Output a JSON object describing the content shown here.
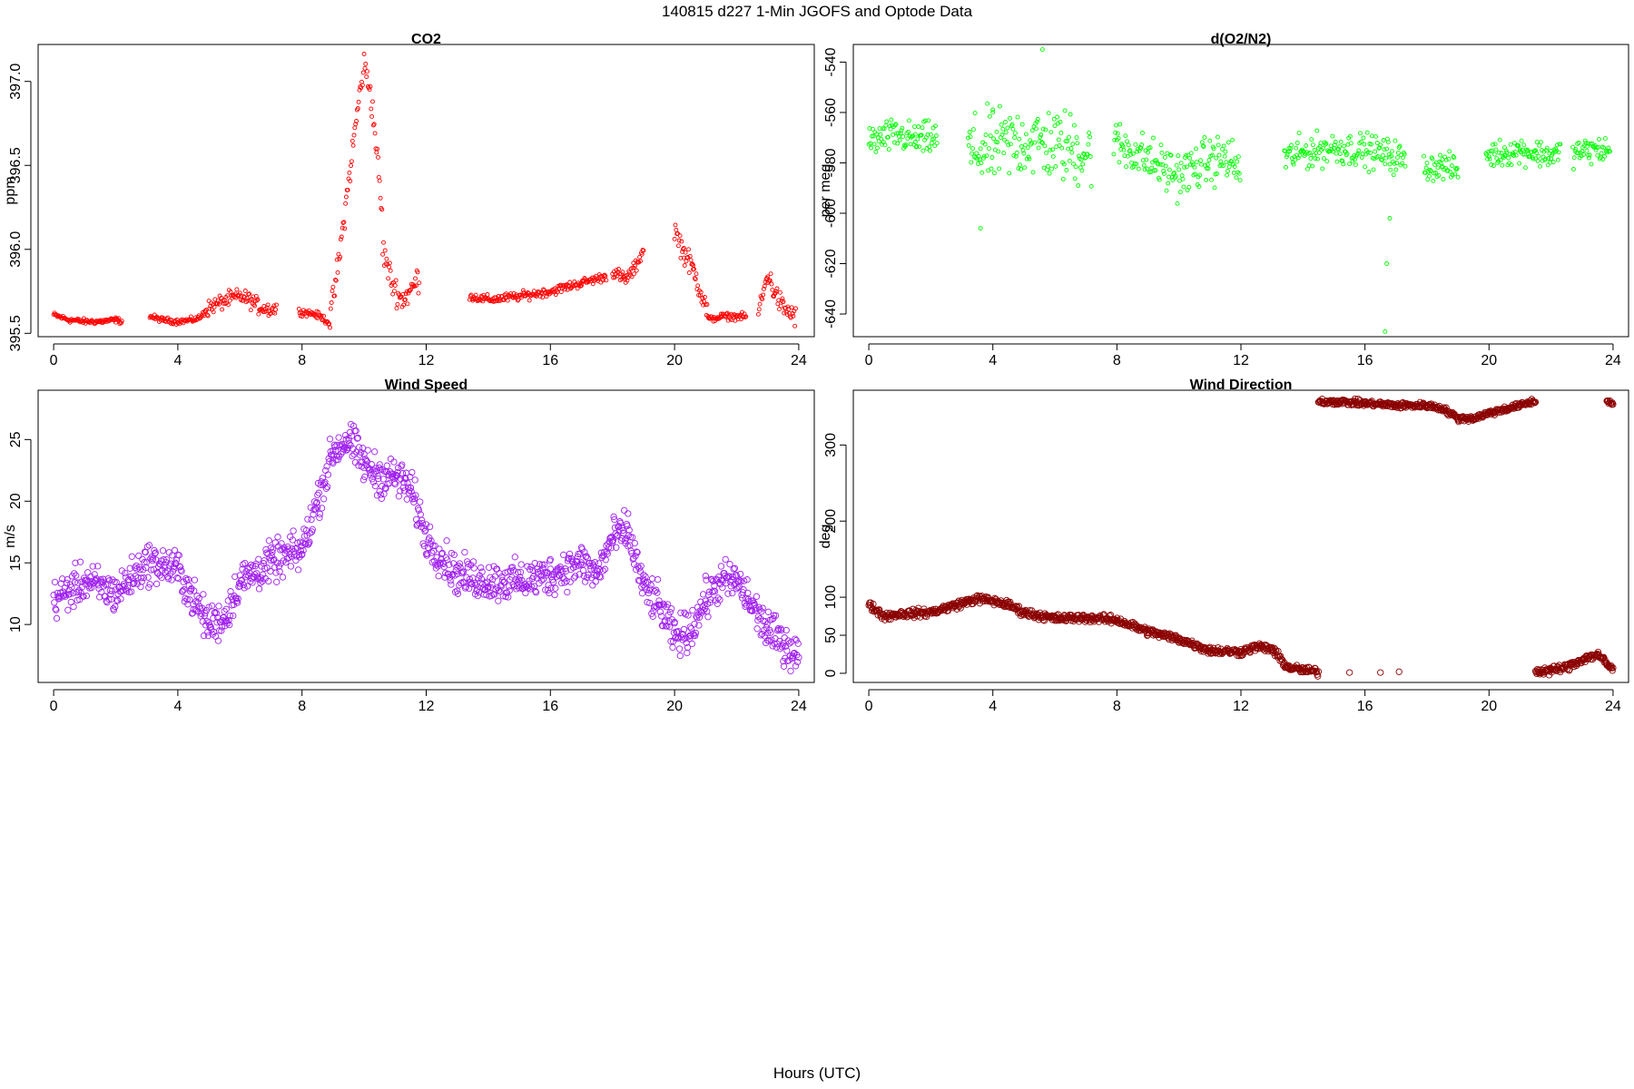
{
  "figure": {
    "title": "140815   d227   1-Min  JGOFS and Optode Data",
    "xlabel": "Hours (UTC)"
  },
  "chart_data": [
    {
      "type": "scatter",
      "title": "CO2",
      "ylabel": "ppm",
      "color": "#ff0000",
      "marker": "small-open-circle",
      "xlim": [
        -0.5,
        24.5
      ],
      "ylim": [
        395.48,
        397.22
      ],
      "xticks": [
        0,
        4,
        8,
        12,
        16,
        20,
        24
      ],
      "yticks": [
        395.5,
        396.0,
        396.5,
        397.0
      ],
      "ytick_labels": [
        "395.5",
        "396.0",
        "396.5",
        "397.0"
      ],
      "segments": [
        {
          "x": [
            0,
            0.5,
            1,
            1.5,
            2,
            2.2
          ],
          "y": [
            395.61,
            395.58,
            395.57,
            395.57,
            395.58,
            395.57
          ],
          "noise": 0.012
        },
        {
          "x": [
            3.1,
            3.5,
            4,
            4.5,
            4.8
          ],
          "y": [
            395.6,
            395.58,
            395.57,
            395.58,
            395.6
          ],
          "noise": 0.012
        },
        {
          "x": [
            4.8,
            5.2,
            5.6,
            6,
            6.3,
            6.6,
            7.0,
            7.2
          ],
          "y": [
            395.63,
            395.67,
            395.7,
            395.72,
            395.7,
            395.66,
            395.64,
            395.65
          ],
          "noise": 0.035
        },
        {
          "x": [
            7.9,
            8.3,
            8.6,
            8.9
          ],
          "y": [
            395.63,
            395.62,
            395.6,
            395.56
          ],
          "noise": 0.015
        },
        {
          "x": [
            8.9,
            9.2,
            9.5,
            9.8,
            10.0,
            10.2,
            10.4,
            10.6
          ],
          "y": [
            395.58,
            395.95,
            396.4,
            396.85,
            397.1,
            396.95,
            396.6,
            396.15
          ],
          "noise": 0.06
        },
        {
          "x": [
            10.6,
            10.9,
            11.2,
            11.5,
            11.8
          ],
          "y": [
            396.0,
            395.8,
            395.7,
            395.75,
            395.85
          ],
          "noise": 0.06
        },
        {
          "x": [
            13.4,
            14,
            15,
            16,
            17,
            17.8
          ],
          "y": [
            395.72,
            395.7,
            395.72,
            395.75,
            395.8,
            395.84
          ],
          "noise": 0.02
        },
        {
          "x": [
            18.0,
            18.4,
            18.7,
            19.0
          ],
          "y": [
            395.87,
            395.82,
            395.88,
            396.0
          ],
          "noise": 0.03
        },
        {
          "x": [
            20.0,
            20.3,
            20.6,
            20.9,
            21.1
          ],
          "y": [
            396.12,
            395.98,
            395.88,
            395.72,
            395.6
          ],
          "noise": 0.05
        },
        {
          "x": [
            21.1,
            21.5,
            22.0,
            22.3
          ],
          "y": [
            395.58,
            395.6,
            395.6,
            395.6
          ],
          "noise": 0.015
        },
        {
          "x": [
            22.7,
            23.0,
            23.2,
            23.5,
            23.9
          ],
          "y": [
            395.62,
            395.85,
            395.75,
            395.65,
            395.6
          ],
          "noise": 0.05
        }
      ]
    },
    {
      "type": "scatter",
      "title": "d(O2/N2)",
      "ylabel": "per meg",
      "color": "#00ff00",
      "marker": "small-open-circle",
      "xlim": [
        -0.5,
        24.5
      ],
      "ylim": [
        -649,
        -533
      ],
      "xticks": [
        0,
        4,
        8,
        12,
        16,
        20,
        24
      ],
      "yticks": [
        -640,
        -620,
        -600,
        -580,
        -560,
        -540
      ],
      "ytick_labels": [
        "-640",
        "-620",
        "-600",
        "-580",
        "-560",
        "-540"
      ],
      "segments": [
        {
          "x": [
            0,
            0.5,
            1,
            1.5,
            2.2
          ],
          "y": [
            -572,
            -570,
            -569,
            -571,
            -570
          ],
          "noise": 5
        },
        {
          "x": [
            3.2,
            4,
            5,
            6,
            7.2
          ],
          "y": [
            -576,
            -574,
            -571,
            -573,
            -576
          ],
          "noise": 11
        },
        {
          "x": [
            7.9,
            8.5,
            9.2,
            10,
            10.8,
            11.5,
            12.0
          ],
          "y": [
            -572,
            -575,
            -580,
            -585,
            -580,
            -578,
            -583
          ],
          "noise": 7
        },
        {
          "x": [
            13.4,
            14,
            15,
            16,
            16.8,
            17.3
          ],
          "y": [
            -578,
            -576,
            -574,
            -575,
            -577,
            -579
          ],
          "noise": 5
        },
        {
          "x": [
            17.9,
            18.5,
            19.0
          ],
          "y": [
            -582,
            -581,
            -583
          ],
          "noise": 4
        },
        {
          "x": [
            19.9,
            20.5,
            21,
            21.5,
            22,
            22.3
          ],
          "y": [
            -577,
            -576,
            -575,
            -576,
            -577,
            -576
          ],
          "noise": 4
        },
        {
          "x": [
            22.7,
            23.2,
            23.9
          ],
          "y": [
            -576,
            -575,
            -575
          ],
          "noise": 4
        }
      ],
      "outliers": [
        {
          "x": 16.65,
          "y": -647
        },
        {
          "x": 16.7,
          "y": -620
        },
        {
          "x": 16.8,
          "y": -602
        },
        {
          "x": 3.6,
          "y": -606
        },
        {
          "x": 5.6,
          "y": -535
        }
      ]
    },
    {
      "type": "scatter",
      "title": "Wind Speed",
      "ylabel": "m/s",
      "color": "#a020f0",
      "marker": "open-circle",
      "xlim": [
        -0.5,
        24.5
      ],
      "ylim": [
        5.3,
        29.0
      ],
      "xticks": [
        0,
        4,
        8,
        12,
        16,
        20,
        24
      ],
      "yticks": [
        10,
        15,
        20,
        25
      ],
      "ytick_labels": [
        "10",
        "15",
        "20",
        "25"
      ],
      "segments": [
        {
          "x": [
            0,
            1,
            2,
            3,
            4,
            4.5,
            5,
            5.5,
            6,
            7,
            8,
            8.5,
            9,
            9.5,
            10,
            10.5,
            11,
            11.5,
            12,
            13,
            14,
            15,
            16,
            17,
            17.5,
            18,
            18.5,
            19,
            19.5,
            20,
            20.5,
            21,
            21.5,
            22,
            22.5,
            23,
            23.5,
            24
          ],
          "y": [
            12,
            13.5,
            12.5,
            15,
            14.5,
            12,
            10,
            10.5,
            13.5,
            15,
            16,
            20,
            24,
            25,
            23,
            22,
            22,
            21,
            17,
            14,
            13.5,
            13.5,
            14,
            15,
            14,
            17,
            17.5,
            13,
            11.5,
            9,
            9.5,
            12,
            13.5,
            13.5,
            11.5,
            9.5,
            8.5,
            7.5
          ],
          "noise": 1.2
        }
      ]
    },
    {
      "type": "scatter",
      "title": "Wind Direction",
      "ylabel": "deg",
      "color": "#8b0000",
      "marker": "open-circle",
      "xlim": [
        -0.5,
        24.5
      ],
      "ylim": [
        -12,
        372
      ],
      "xticks": [
        0,
        4,
        8,
        12,
        16,
        20,
        24
      ],
      "yticks": [
        0,
        50,
        100,
        200,
        300
      ],
      "ytick_labels": [
        "0",
        "50",
        "100",
        "200",
        "300"
      ],
      "segments": [
        {
          "x": [
            0,
            0.5,
            1,
            2,
            3,
            3.5,
            4,
            4.5,
            5,
            6,
            7,
            8,
            9,
            10,
            11,
            12,
            12.5,
            13,
            13.5,
            14,
            14.5
          ],
          "y": [
            90,
            75,
            78,
            80,
            92,
            98,
            95,
            90,
            80,
            72,
            73,
            70,
            55,
            45,
            30,
            28,
            35,
            32,
            8,
            4,
            2
          ],
          "noise": 4
        },
        {
          "x": [
            14.5,
            15,
            16,
            17,
            18,
            18.5,
            19,
            19.5,
            20,
            21,
            21.5
          ],
          "y": [
            357,
            357,
            355,
            352,
            352,
            348,
            335,
            335,
            342,
            352,
            358
          ],
          "noise": 3
        },
        {
          "x": [
            21.5,
            22,
            22.5,
            23,
            23.5,
            23.8,
            24
          ],
          "y": [
            2,
            4,
            8,
            18,
            25,
            12,
            5
          ],
          "noise": 4
        },
        {
          "x": [
            23.8,
            24
          ],
          "y": [
            357,
            355
          ],
          "noise": 2
        }
      ],
      "outliers": [
        {
          "x": 15.5,
          "y": 1
        },
        {
          "x": 16.5,
          "y": 1
        },
        {
          "x": 17.1,
          "y": 2
        }
      ]
    }
  ]
}
